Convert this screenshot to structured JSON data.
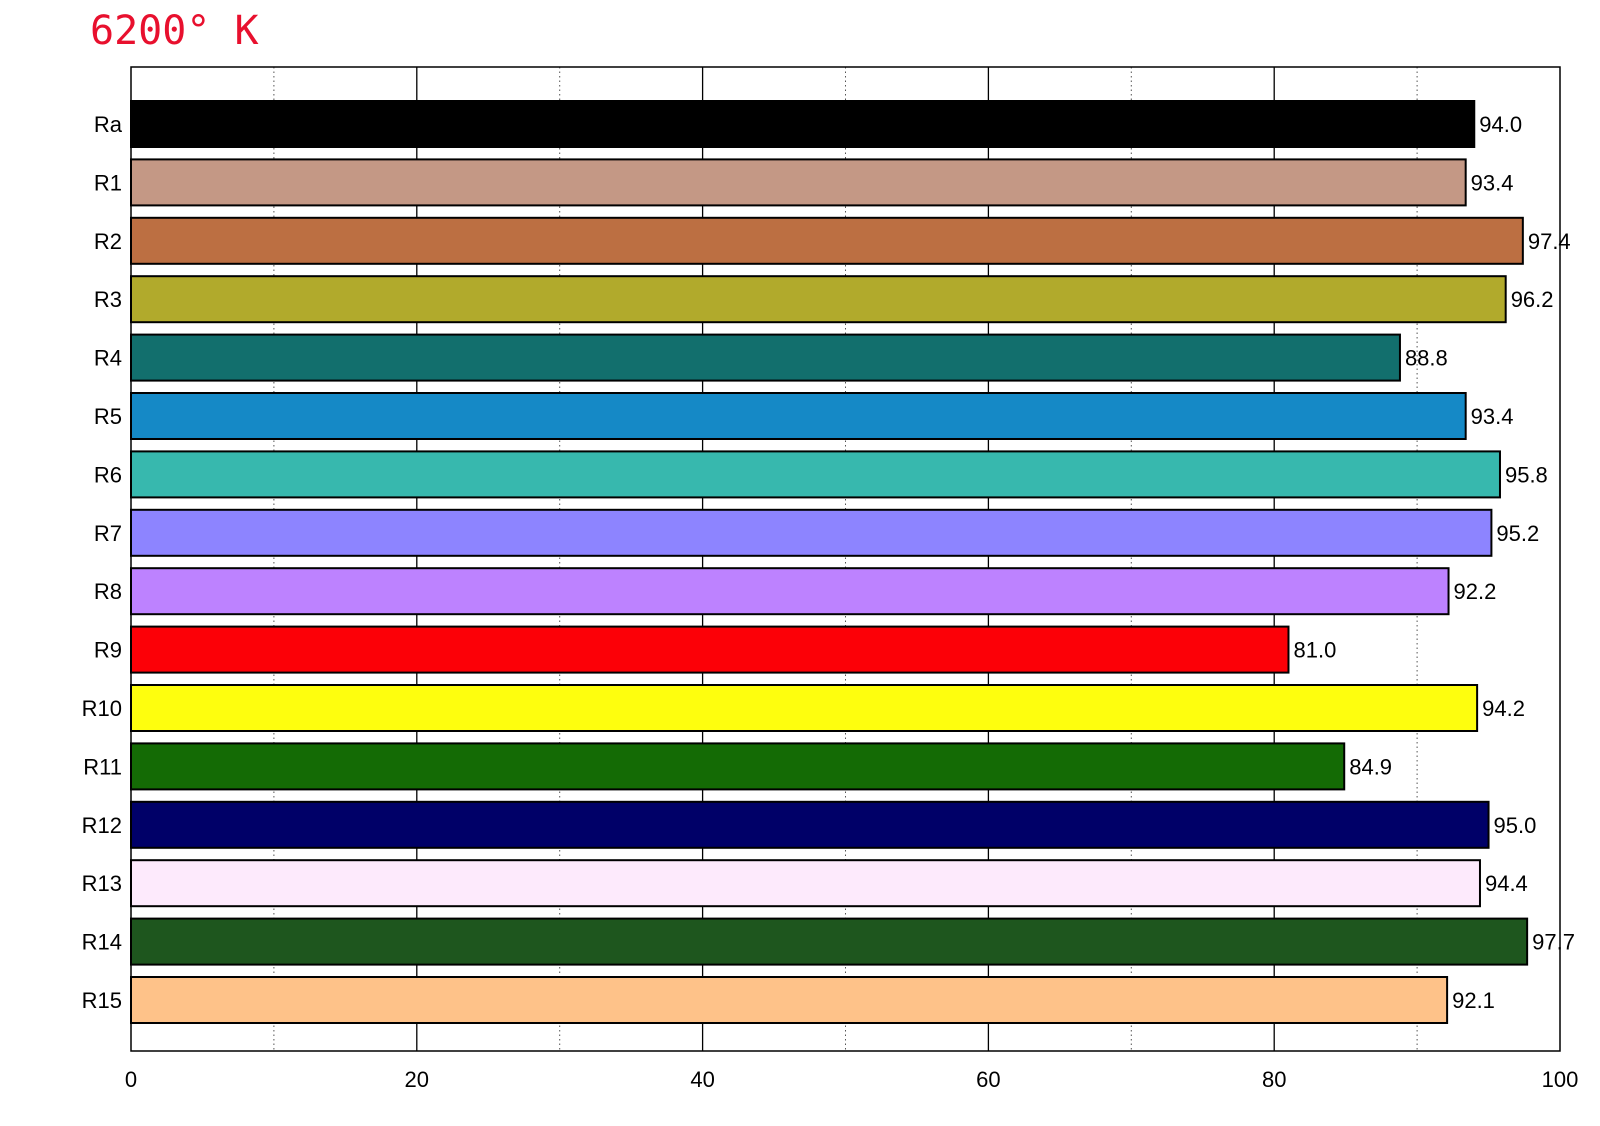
{
  "title": "6200° K",
  "title_color": "#e8102e",
  "chart_data": {
    "type": "bar",
    "orientation": "horizontal",
    "title": "6200° K",
    "xlabel": "",
    "ylabel": "",
    "xlim": [
      0,
      100
    ],
    "x_ticks": [
      0,
      20,
      40,
      60,
      80,
      100
    ],
    "minor_gridlines": [
      10,
      30,
      50,
      70,
      90
    ],
    "grid": "vertical",
    "categories": [
      "Ra",
      "R1",
      "R2",
      "R3",
      "R4",
      "R5",
      "R6",
      "R7",
      "R8",
      "R9",
      "R10",
      "R11",
      "R12",
      "R13",
      "R14",
      "R15"
    ],
    "values": [
      94.0,
      93.4,
      97.4,
      96.2,
      88.8,
      93.4,
      95.8,
      95.2,
      92.2,
      81.0,
      94.2,
      84.9,
      95.0,
      94.4,
      97.7,
      92.1
    ],
    "value_labels": [
      "94.0",
      "93.4",
      "97.4",
      "96.2",
      "88.8",
      "93.4",
      "95.8",
      "95.2",
      "92.2",
      "81.0",
      "94.2",
      "84.9",
      "95.0",
      "94.4",
      "97.7",
      "92.1"
    ],
    "colors": [
      "#000000",
      "#c49885",
      "#bc6f42",
      "#b1aa2c",
      "#126f6d",
      "#1589c6",
      "#37b8ae",
      "#8d84ff",
      "#bd82ff",
      "#fc0007",
      "#fefe0e",
      "#146b05",
      "#000068",
      "#fdeafc",
      "#1e561e",
      "#fec289"
    ]
  }
}
